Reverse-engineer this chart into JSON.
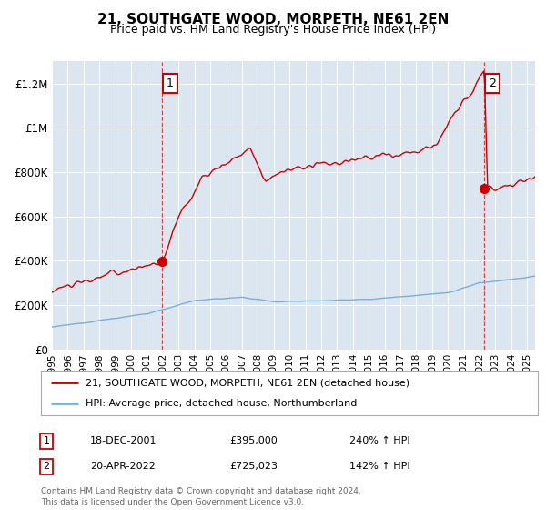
{
  "title": "21, SOUTHGATE WOOD, MORPETH, NE61 2EN",
  "subtitle": "Price paid vs. HM Land Registry's House Price Index (HPI)",
  "ylabel_ticks": [
    "£0",
    "£200K",
    "£400K",
    "£600K",
    "£800K",
    "£1M",
    "£1.2M"
  ],
  "ytick_values": [
    0,
    200000,
    400000,
    600000,
    800000,
    1000000,
    1200000
  ],
  "ylim": [
    0,
    1300000
  ],
  "xlim_start": 1995.0,
  "xlim_end": 2025.5,
  "plot_bg_color": "#dce6f1",
  "hpi_line_color": "#7ab0d4",
  "price_line_color": "#cc0000",
  "vline_color": "#cc0000",
  "marker1_x": 2001.97,
  "marker1_y": 395000,
  "marker2_x": 2022.3,
  "marker2_y": 725023,
  "legend_line1": "21, SOUTHGATE WOOD, MORPETH, NE61 2EN (detached house)",
  "legend_line2": "HPI: Average price, detached house, Northumberland",
  "annotation1_num": "1",
  "annotation1_date": "18-DEC-2001",
  "annotation1_price": "£395,000",
  "annotation1_hpi": "240% ↑ HPI",
  "annotation2_num": "2",
  "annotation2_date": "20-APR-2022",
  "annotation2_price": "£725,023",
  "annotation2_hpi": "142% ↑ HPI",
  "footer": "Contains HM Land Registry data © Crown copyright and database right 2024.\nThis data is licensed under the Open Government Licence v3.0.",
  "xtick_years": [
    1995,
    1996,
    1997,
    1998,
    1999,
    2000,
    2001,
    2002,
    2003,
    2004,
    2005,
    2006,
    2007,
    2008,
    2009,
    2010,
    2011,
    2012,
    2013,
    2014,
    2015,
    2016,
    2017,
    2018,
    2019,
    2020,
    2021,
    2022,
    2023,
    2024,
    2025
  ]
}
